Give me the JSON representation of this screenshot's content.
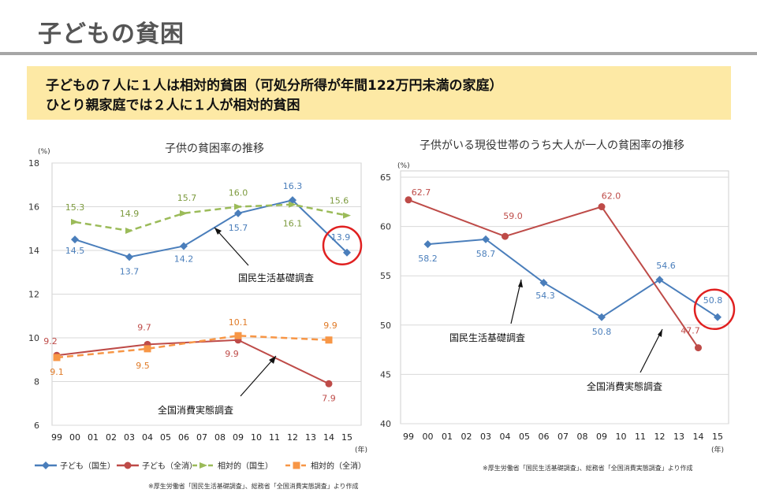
{
  "page": {
    "title": "子どもの貧困",
    "banner_line1": "子どもの７人に１人は相対的貧困（可処分所得が年間122万円未満の家庭）",
    "banner_line2": "ひとり親家庭では２人に１人が相対的貧困",
    "colors": {
      "blue": "#4a7ebb",
      "red": "#be4b48",
      "green": "#9bbb59",
      "orange": "#f79646",
      "highlight": "#e02020"
    }
  },
  "chart_data": [
    {
      "type": "line",
      "title": "子供の貧困率の推移",
      "ylabel": "(%)",
      "xlabel": "(年)",
      "ylim": [
        6,
        18
      ],
      "yticks": [
        6,
        8,
        10,
        12,
        14,
        16,
        18
      ],
      "categories": [
        "99",
        "00",
        "01",
        "02",
        "03",
        "04",
        "05",
        "06",
        "07",
        "08",
        "09",
        "10",
        "11",
        "12",
        "13",
        "14",
        "15"
      ],
      "grid": true,
      "legend_position": "bottom",
      "series": [
        {
          "name": "子ども（国生）",
          "color": "#4a7ebb",
          "style": "solid",
          "marker": "diamond",
          "points": [
            {
              "x": "00",
              "y": 14.5,
              "label": "14.5"
            },
            {
              "x": "03",
              "y": 13.7,
              "label": "13.7"
            },
            {
              "x": "06",
              "y": 14.2,
              "label": "14.2"
            },
            {
              "x": "09",
              "y": 15.7,
              "label": "15.7"
            },
            {
              "x": "12",
              "y": 16.3,
              "label": "16.3"
            },
            {
              "x": "15",
              "y": 13.9,
              "label": "13.9"
            }
          ]
        },
        {
          "name": "子ども（全消）",
          "color": "#be4b48",
          "style": "solid",
          "marker": "circle",
          "points": [
            {
              "x": "99",
              "y": 9.2,
              "label": "9.2"
            },
            {
              "x": "04",
              "y": 9.7,
              "label": "9.7"
            },
            {
              "x": "09",
              "y": 9.9,
              "label": "9.9"
            },
            {
              "x": "14",
              "y": 7.9,
              "label": "7.9"
            }
          ]
        },
        {
          "name": "相対的（国生）",
          "color": "#9bbb59",
          "style": "dashed",
          "marker": "arrow",
          "points": [
            {
              "x": "00",
              "y": 15.3,
              "label": "15.3"
            },
            {
              "x": "03",
              "y": 14.9,
              "label": "14.9"
            },
            {
              "x": "06",
              "y": 15.7,
              "label": "15.7"
            },
            {
              "x": "09",
              "y": 16.0,
              "label": "16.0"
            },
            {
              "x": "12",
              "y": 16.1,
              "label": "16.1"
            },
            {
              "x": "15",
              "y": 15.6,
              "label": "15.6"
            }
          ]
        },
        {
          "name": "相対的（全消）",
          "color": "#f79646",
          "style": "dashed",
          "marker": "square",
          "points": [
            {
              "x": "99",
              "y": 9.1,
              "label": "9.1"
            },
            {
              "x": "04",
              "y": 9.5,
              "label": "9.5"
            },
            {
              "x": "09",
              "y": 10.1,
              "label": "10.1"
            },
            {
              "x": "14",
              "y": 9.9,
              "label": "9.9"
            }
          ]
        }
      ],
      "annotations": [
        "国民生活基礎調査",
        "全国消費実態調査"
      ],
      "highlight": {
        "x": "15",
        "y": 13.9
      },
      "source": "※厚生労働省「国民生活基礎調査」、総務省「全国消費実態調査」より作成"
    },
    {
      "type": "line",
      "title": "子供がいる現役世帯のうち大人が一人の貧困率の推移",
      "ylabel": "(%)",
      "xlabel": "(年)",
      "ylim": [
        40,
        65
      ],
      "yticks": [
        40,
        45,
        50,
        55,
        60,
        65
      ],
      "categories": [
        "99",
        "00",
        "01",
        "02",
        "03",
        "04",
        "05",
        "06",
        "07",
        "08",
        "09",
        "10",
        "11",
        "12",
        "13",
        "14",
        "15"
      ],
      "grid": true,
      "series": [
        {
          "color": "#4a7ebb",
          "style": "solid",
          "marker": "diamond",
          "points": [
            {
              "x": "00",
              "y": 58.2,
              "label": "58.2"
            },
            {
              "x": "03",
              "y": 58.7,
              "label": "58.7"
            },
            {
              "x": "06",
              "y": 54.3,
              "label": "54.3"
            },
            {
              "x": "09",
              "y": 50.8,
              "label": "50.8"
            },
            {
              "x": "12",
              "y": 54.6,
              "label": "54.6"
            },
            {
              "x": "15",
              "y": 50.8,
              "label": "50.8"
            }
          ]
        },
        {
          "color": "#be4b48",
          "style": "solid",
          "marker": "circle",
          "points": [
            {
              "x": "99",
              "y": 62.7,
              "label": "62.7"
            },
            {
              "x": "04",
              "y": 59.0,
              "label": "59.0"
            },
            {
              "x": "09",
              "y": 62.0,
              "label": "62.0"
            },
            {
              "x": "14",
              "y": 47.7,
              "label": "47.7"
            }
          ]
        }
      ],
      "annotations": [
        "国民生活基礎調査",
        "全国消費実態調査"
      ],
      "highlight": {
        "x": "15",
        "y": 50.8
      },
      "source": "※厚生労働省「国民生活基礎調査」、総務省「全国消費実態調査」より作成"
    }
  ]
}
